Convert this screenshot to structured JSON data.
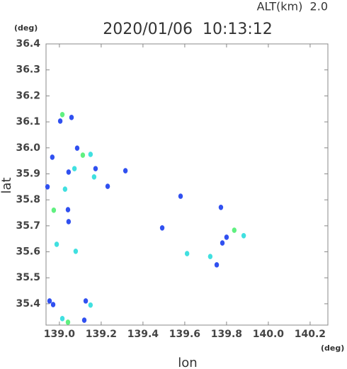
{
  "chart_data": {
    "type": "scatter",
    "title": "2020/01/06  10:13:12",
    "subtitle": "ALT(km)  2.0",
    "y_unit": "(deg)",
    "x_unit": "(deg)",
    "x_label": "lon",
    "y_label": "lat",
    "xlim": [
      138.936,
      140.285
    ],
    "ylim": [
      35.318,
      36.4
    ],
    "xticks": [
      {
        "value": 139,
        "label": "139.0"
      },
      139.2,
      139.4,
      139.6,
      139.8,
      {
        "value": 140,
        "label": "140.0"
      },
      140.2
    ],
    "yticks": [
      35.4,
      35.5,
      35.6,
      35.7,
      35.8,
      35.9,
      {
        "value": 36,
        "label": "36.0"
      },
      36.1,
      36.2,
      36.3,
      36.4
    ],
    "x": [
      139.014,
      139.058,
      139.004,
      139.085,
      139.112,
      139.149,
      138.966,
      139.072,
      139.044,
      139.173,
      139.316,
      139.166,
      138.943,
      139.027,
      139.231,
      138.973,
      139.041,
      139.044,
      138.987,
      139.078,
      138.953,
      138.97,
      139.014,
      139.041,
      139.126,
      139.149,
      139.119,
      139.58,
      139.611,
      139.722,
      139.753,
      139.78,
      139.8,
      139.837,
      139.882,
      139.773,
      139.492
    ],
    "values": [
      36.128,
      36.117,
      36.103,
      35.999,
      35.972,
      35.975,
      35.964,
      35.92,
      35.907,
      35.92,
      35.912,
      35.888,
      35.85,
      35.841,
      35.852,
      35.76,
      35.762,
      35.716,
      35.629,
      35.602,
      35.411,
      35.397,
      35.343,
      35.329,
      35.411,
      35.395,
      35.337,
      35.814,
      35.593,
      35.582,
      35.55,
      35.634,
      35.656,
      35.683,
      35.662,
      35.771,
      35.692
    ],
    "colors": [
      "#60f080",
      "#3050f0",
      "#3050f0",
      "#3050f0",
      "#60f080",
      "#40e0e0",
      "#3050f0",
      "#40e0e0",
      "#3050f0",
      "#3050f0",
      "#3050f0",
      "#40e0e0",
      "#3050f0",
      "#40e0e0",
      "#3050f0",
      "#60f080",
      "#3050f0",
      "#3050f0",
      "#40e0e0",
      "#40e0e0",
      "#3050f0",
      "#3050f0",
      "#40e0e0",
      "#60f080",
      "#3050f0",
      "#40e0e0",
      "#3050f0",
      "#3050f0",
      "#40e0e0",
      "#40e0e0",
      "#3050f0",
      "#3050f0",
      "#3050f0",
      "#60f080",
      "#40e0e0",
      "#3050f0",
      "#3050f0"
    ]
  }
}
